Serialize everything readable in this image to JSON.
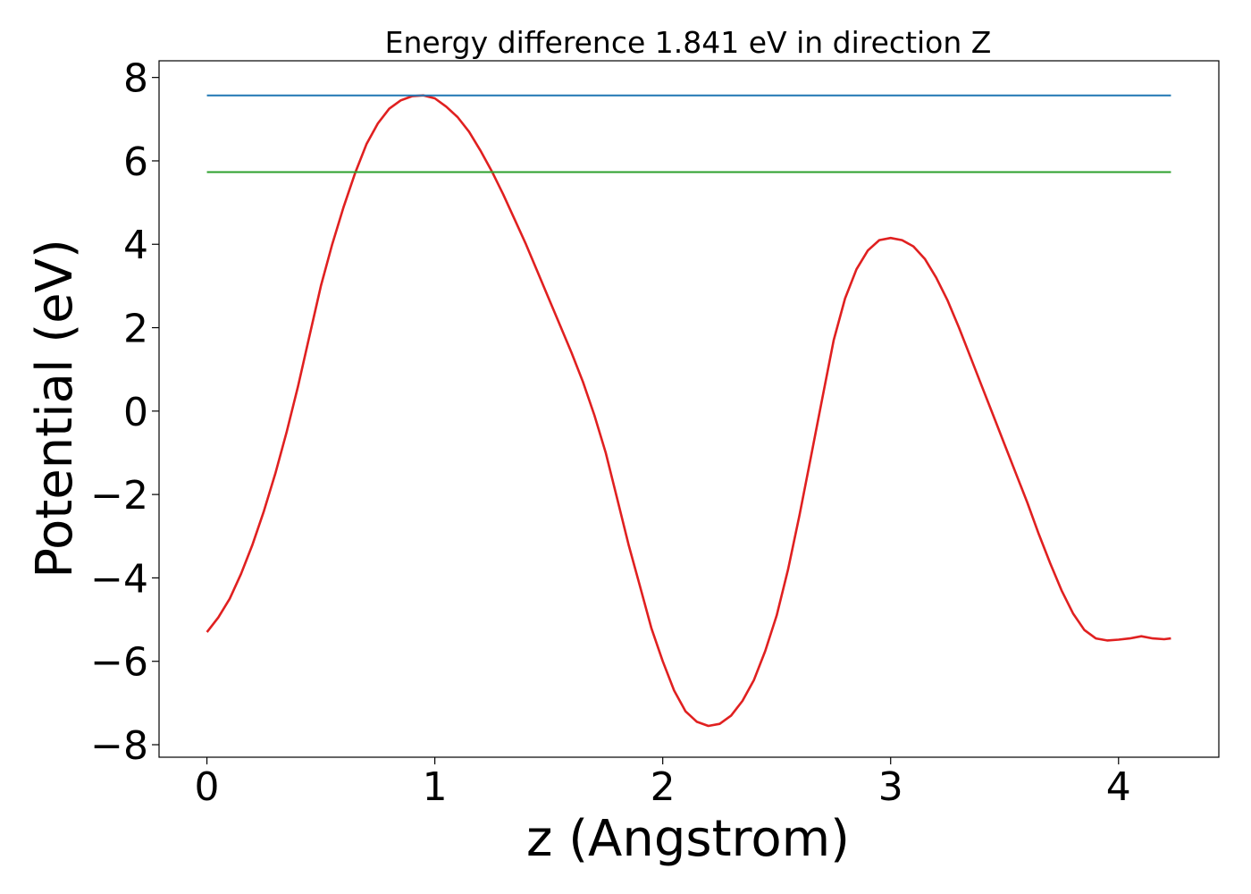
{
  "chart_data": {
    "type": "line",
    "title": "Energy difference 1.841 eV in direction Z",
    "xlabel": "z (Angstrom)",
    "ylabel": "Potential (eV)",
    "xlim": [
      -0.21,
      4.44
    ],
    "ylim": [
      -8.3,
      8.4
    ],
    "xticks": [
      0,
      1,
      2,
      3,
      4
    ],
    "xtick_labels": [
      "0",
      "1",
      "2",
      "3",
      "4"
    ],
    "yticks": [
      -8,
      -6,
      -4,
      -2,
      0,
      2,
      4,
      6,
      8
    ],
    "ytick_labels": [
      "−8",
      "−6",
      "−4",
      "−2",
      "0",
      "2",
      "4",
      "6",
      "8"
    ],
    "grid": false,
    "colors": {
      "potential": "#e02020",
      "max_line": "#1f77b4",
      "avg_line": "#2ca02c"
    },
    "series": [
      {
        "type": "line",
        "color": "#e02020",
        "x": [
          0,
          0.05,
          0.1,
          0.15,
          0.2,
          0.25,
          0.3,
          0.35,
          0.4,
          0.45,
          0.5,
          0.55,
          0.6,
          0.65,
          0.7,
          0.75,
          0.8,
          0.85,
          0.9,
          0.95,
          1.0,
          1.05,
          1.1,
          1.15,
          1.2,
          1.25,
          1.3,
          1.35,
          1.4,
          1.45,
          1.5,
          1.55,
          1.6,
          1.65,
          1.7,
          1.75,
          1.8,
          1.85,
          1.9,
          1.95,
          2.0,
          2.05,
          2.1,
          2.15,
          2.2,
          2.25,
          2.3,
          2.35,
          2.4,
          2.45,
          2.5,
          2.55,
          2.6,
          2.65,
          2.7,
          2.75,
          2.8,
          2.85,
          2.9,
          2.95,
          3.0,
          3.05,
          3.1,
          3.15,
          3.2,
          3.25,
          3.3,
          3.35,
          3.4,
          3.45,
          3.5,
          3.55,
          3.6,
          3.65,
          3.7,
          3.75,
          3.8,
          3.85,
          3.9,
          3.95,
          4.0,
          4.05,
          4.1,
          4.15,
          4.2,
          4.23
        ],
        "y": [
          -5.3,
          -4.95,
          -4.5,
          -3.9,
          -3.2,
          -2.4,
          -1.5,
          -0.5,
          0.6,
          1.8,
          3.0,
          4.0,
          4.9,
          5.7,
          6.4,
          6.9,
          7.25,
          7.45,
          7.55,
          7.57,
          7.5,
          7.3,
          7.05,
          6.7,
          6.25,
          5.75,
          5.2,
          4.6,
          4.0,
          3.35,
          2.7,
          2.05,
          1.4,
          0.7,
          -0.1,
          -1.0,
          -2.1,
          -3.2,
          -4.2,
          -5.2,
          -6.0,
          -6.7,
          -7.2,
          -7.45,
          -7.55,
          -7.5,
          -7.3,
          -6.95,
          -6.45,
          -5.75,
          -4.9,
          -3.8,
          -2.5,
          -1.1,
          0.3,
          1.7,
          2.7,
          3.4,
          3.85,
          4.1,
          4.15,
          4.1,
          3.95,
          3.65,
          3.2,
          2.65,
          2.0,
          1.3,
          0.6,
          -0.1,
          -0.8,
          -1.5,
          -2.2,
          -2.95,
          -3.65,
          -4.3,
          -4.85,
          -5.25,
          -5.45,
          -5.5,
          -5.48,
          -5.45,
          -5.4,
          -5.45,
          -5.47,
          -5.45
        ]
      },
      {
        "type": "hline",
        "color": "#1f77b4",
        "y": 7.57,
        "x": [
          0,
          4.23
        ]
      },
      {
        "type": "hline",
        "color": "#2ca02c",
        "y": 5.73,
        "x": [
          0,
          4.23
        ]
      }
    ]
  }
}
